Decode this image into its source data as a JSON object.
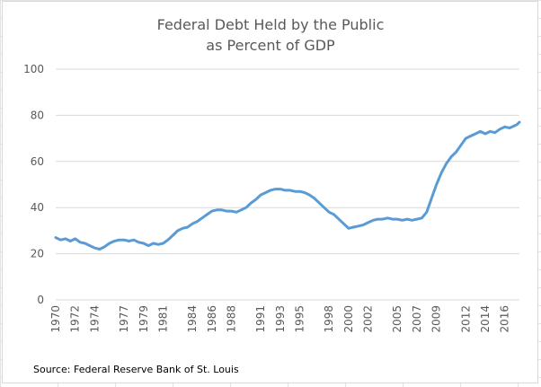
{
  "chart_data": {
    "type": "line",
    "title": "Federal Debt Held by the Public",
    "subtitle": "as Percent of GDP",
    "source": "Source: Federal Reserve Bank of St. Louis",
    "xlabel": "",
    "ylabel": "",
    "ylim": [
      0,
      100
    ],
    "xlim": [
      1970,
      2017.5
    ],
    "y_ticks": [
      "0",
      "20",
      "40",
      "60",
      "80",
      "100"
    ],
    "x_ticks": [
      {
        "label": "1970",
        "value": 1970
      },
      {
        "label": "1972",
        "value": 1972
      },
      {
        "label": "1974",
        "value": 1974
      },
      {
        "label": "1977",
        "value": 1977
      },
      {
        "label": "1979",
        "value": 1979
      },
      {
        "label": "1981",
        "value": 1981
      },
      {
        "label": "1984",
        "value": 1984
      },
      {
        "label": "1986",
        "value": 1986
      },
      {
        "label": "1988",
        "value": 1988
      },
      {
        "label": "1991",
        "value": 1991
      },
      {
        "label": "1993",
        "value": 1993
      },
      {
        "label": "1995",
        "value": 1995
      },
      {
        "label": "1998",
        "value": 1998
      },
      {
        "label": "2000",
        "value": 2000
      },
      {
        "label": "2002",
        "value": 2002
      },
      {
        "label": "2005",
        "value": 2005
      },
      {
        "label": "2007",
        "value": 2007
      },
      {
        "label": "2009",
        "value": 2009
      },
      {
        "label": "2012",
        "value": 2012
      },
      {
        "label": "2014",
        "value": 2014
      },
      {
        "label": "2016",
        "value": 2016
      }
    ],
    "grid": {
      "horizontal": true,
      "vertical": false
    },
    "line_color": "#5b9bd5",
    "series": [
      {
        "x": [
          1970.0,
          1970.5,
          1971.0,
          1971.5,
          1972.0,
          1972.5,
          1973.0,
          1973.5,
          1974.0,
          1974.5,
          1975.0,
          1975.5,
          1976.0,
          1976.5,
          1977.0,
          1977.5,
          1978.0,
          1978.5,
          1979.0,
          1979.5,
          1980.0,
          1980.5,
          1981.0,
          1981.5,
          1982.0,
          1982.5,
          1983.0,
          1983.5,
          1984.0,
          1984.5,
          1985.0,
          1985.5,
          1986.0,
          1986.5,
          1987.0,
          1987.5,
          1988.0,
          1988.5,
          1989.0,
          1989.5,
          1990.0,
          1990.5,
          1991.0,
          1991.5,
          1992.0,
          1992.5,
          1993.0,
          1993.5,
          1994.0,
          1994.5,
          1995.0,
          1995.5,
          1996.0,
          1996.5,
          1997.0,
          1997.5,
          1998.0,
          1998.5,
          1999.0,
          1999.5,
          2000.0,
          2000.5,
          2001.0,
          2001.5,
          2002.0,
          2002.5,
          2003.0,
          2003.5,
          2004.0,
          2004.5,
          2005.0,
          2005.5,
          2006.0,
          2006.5,
          2007.0,
          2007.5,
          2008.0,
          2008.5,
          2009.0,
          2009.5,
          2010.0,
          2010.5,
          2011.0,
          2011.5,
          2012.0,
          2012.5,
          2013.0,
          2013.5,
          2014.0,
          2014.5,
          2015.0,
          2015.5,
          2016.0,
          2016.5,
          2017.0,
          2017.25,
          2017.5
        ],
        "values": [
          27,
          26,
          26.5,
          25.5,
          26.5,
          25,
          24.5,
          23.5,
          22.5,
          22,
          23,
          24.5,
          25.5,
          26,
          26,
          25.5,
          26,
          25,
          24.5,
          23.5,
          24.5,
          24,
          24.5,
          26,
          28,
          30,
          31,
          31.5,
          33,
          34,
          35.5,
          37,
          38.5,
          39,
          39,
          38.5,
          38.5,
          38,
          39,
          40,
          42,
          43.5,
          45.5,
          46.5,
          47.5,
          48,
          48,
          47.5,
          47.5,
          47,
          47,
          46.5,
          45.5,
          44,
          42,
          40,
          38,
          37,
          35,
          33,
          31,
          31.5,
          32,
          32.5,
          33.5,
          34.5,
          35,
          35,
          35.5,
          35,
          35,
          34.5,
          35,
          34.5,
          35,
          35.5,
          38,
          44,
          50,
          55,
          59,
          62,
          64,
          67,
          70,
          71,
          72,
          73,
          72,
          73,
          72.5,
          74,
          75,
          74.5,
          75.5,
          76,
          77
        ]
      }
    ]
  }
}
